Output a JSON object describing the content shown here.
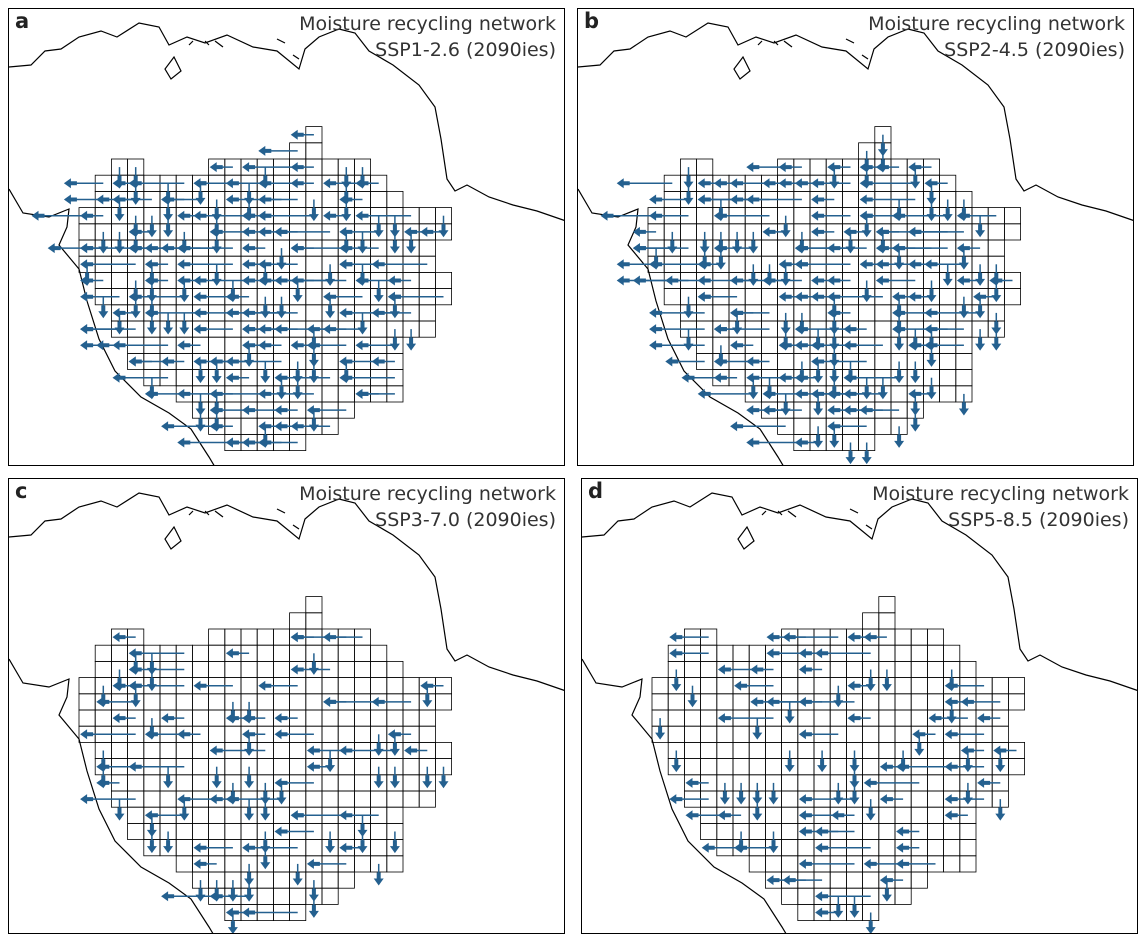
{
  "figure": {
    "colors": {
      "network": "#24608f",
      "grid": "#000000",
      "coast": "#000000"
    },
    "panels": [
      {
        "letter": "a",
        "title": "Moisture recycling network",
        "scenario": "SSP1-2.6 (2090ies)",
        "density": "high"
      },
      {
        "letter": "b",
        "title": "Moisture recycling network",
        "scenario": "SSP2-4.5 (2090ies)",
        "density": "high"
      },
      {
        "letter": "c",
        "title": "Moisture recycling network",
        "scenario": "SSP3-7.0 (2090ies)",
        "density": "medium"
      },
      {
        "letter": "d",
        "title": "Moisture recycling network",
        "scenario": "SSP5-8.5 (2090ies)",
        "density": "low"
      }
    ]
  }
}
